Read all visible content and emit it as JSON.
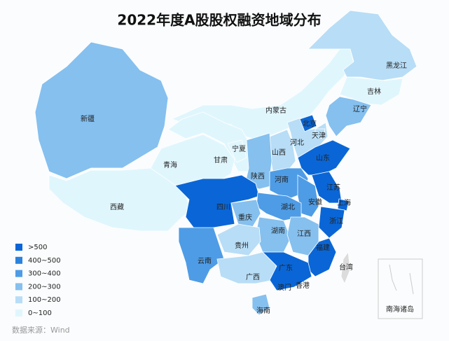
{
  "title": "2022年度A股股权融资地域分布",
  "legend": [
    {
      "label": ">500",
      "color": "#0a66d6"
    },
    {
      "label": "400~500",
      "color": "#2a82de"
    },
    {
      "label": "300~400",
      "color": "#4e9ce6"
    },
    {
      "label": "200~300",
      "color": "#85c0ef"
    },
    {
      "label": "100~200",
      "color": "#b8ddf6"
    },
    {
      "label": "0~100",
      "color": "#e0f6fd"
    }
  ],
  "regions": [
    {
      "name": "新疆",
      "color": "#85c0ef"
    },
    {
      "name": "西藏",
      "color": "#e0f6fd"
    },
    {
      "name": "内蒙古",
      "color": "#e0f6fd"
    },
    {
      "name": "黑龙江",
      "color": "#b8ddf6"
    },
    {
      "name": "吉林",
      "color": "#e0f6fd"
    },
    {
      "name": "辽宁",
      "color": "#85c0ef"
    },
    {
      "name": "甘肃",
      "color": "#e0f6fd"
    },
    {
      "name": "青海",
      "color": "#e0f6fd"
    },
    {
      "name": "河北",
      "color": "#b8ddf6"
    },
    {
      "name": "北京",
      "color": "#0a66d6"
    },
    {
      "name": "天津",
      "color": "#b8ddf6"
    },
    {
      "name": "山西",
      "color": "#b8ddf6"
    },
    {
      "name": "宁夏",
      "color": "#e0f6fd"
    },
    {
      "name": "陕西",
      "color": "#85c0ef"
    },
    {
      "name": "山东",
      "color": "#0a66d6"
    },
    {
      "name": "河南",
      "color": "#4e9ce6"
    },
    {
      "name": "江苏",
      "color": "#0a66d6"
    },
    {
      "name": "安徽",
      "color": "#4e9ce6"
    },
    {
      "name": "上海",
      "color": "#0a66d6"
    },
    {
      "name": "浙江",
      "color": "#0a66d6"
    },
    {
      "name": "四川",
      "color": "#0a66d6"
    },
    {
      "name": "湖北",
      "color": "#4e9ce6"
    },
    {
      "name": "重庆",
      "color": "#85c0ef"
    },
    {
      "name": "湖南",
      "color": "#85c0ef"
    },
    {
      "name": "江西",
      "color": "#85c0ef"
    },
    {
      "name": "福建",
      "color": "#0a66d6"
    },
    {
      "name": "贵州",
      "color": "#b8ddf6"
    },
    {
      "name": "云南",
      "color": "#4e9ce6"
    },
    {
      "name": "广西",
      "color": "#b8ddf6"
    },
    {
      "name": "广东",
      "color": "#0a66d6"
    },
    {
      "name": "海南",
      "color": "#85c0ef"
    },
    {
      "name": "台湾",
      "color": "#dcdcdc"
    },
    {
      "name": "香港",
      "color": null
    },
    {
      "name": "澳门",
      "color": null
    }
  ],
  "inset_label": "南海诸岛",
  "source": "数据来源：Wind"
}
